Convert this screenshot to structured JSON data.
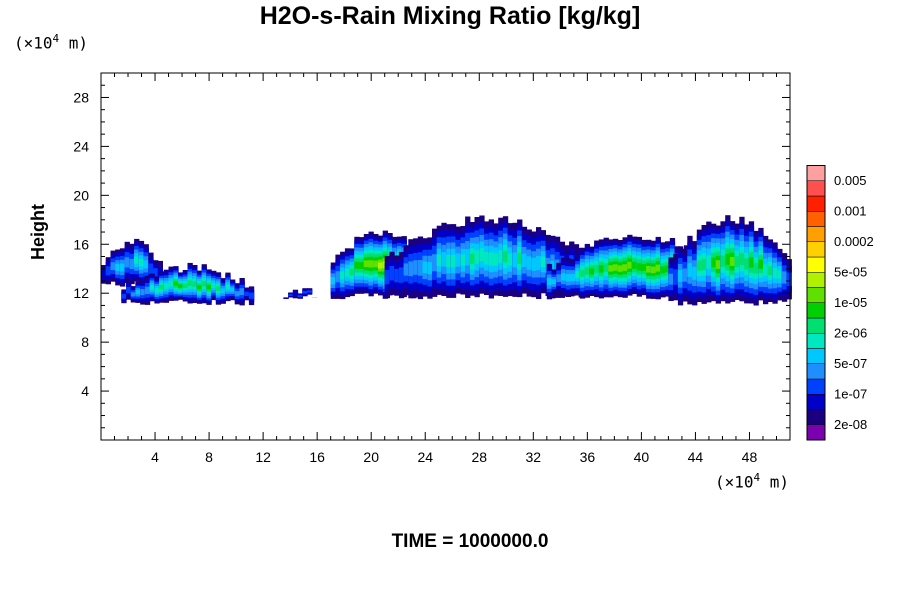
{
  "title": "H2O-s-Rain Mixing Ratio [kg/kg]",
  "y_unit_label": {
    "prefix": "(×10",
    "exp": "4",
    "suffix": " m)"
  },
  "x_unit_label": {
    "prefix": "(×10",
    "exp": "4",
    "suffix": " m)"
  },
  "time_label": "TIME = 1000000.0",
  "chart_data": {
    "type": "heatmap",
    "title": "H2O-s-Rain Mixing Ratio [kg/kg]",
    "ylabel": "Height",
    "x_ticks": [
      4,
      8,
      12,
      16,
      20,
      24,
      28,
      32,
      36,
      40,
      44,
      48
    ],
    "y_ticks": [
      4,
      8,
      12,
      16,
      20,
      24,
      28
    ],
    "xlim": [
      0,
      51
    ],
    "ylim": [
      0,
      30
    ],
    "grid": false,
    "colorbar": {
      "placement": "right",
      "colors": [
        "#7a00b0",
        "#1a0080",
        "#0000c8",
        "#0040ff",
        "#1f8fff",
        "#00c8ff",
        "#00e8c0",
        "#00e070",
        "#00d000",
        "#60e000",
        "#b0f000",
        "#ffff00",
        "#ffd000",
        "#ffa000",
        "#ff6000",
        "#ff2000",
        "#ff5050",
        "#ffa0a0"
      ],
      "labels": [
        "2e-08",
        "1e-07",
        "5e-07",
        "2e-06",
        "1e-05",
        "5e-05",
        "0.0002",
        "0.001",
        "0.005"
      ]
    },
    "regions": [
      {
        "x0": 0,
        "x1": 4.5,
        "ymin": 12.5,
        "ymax": 16.5,
        "peak": 4
      },
      {
        "x0": 1.5,
        "x1": 11,
        "ymin": 11,
        "ymax": 14.5,
        "peak": 6
      },
      {
        "x0": 13.5,
        "x1": 16,
        "ymin": 11.5,
        "ymax": 12.5,
        "peak": 2
      },
      {
        "x0": 17,
        "x1": 24,
        "ymin": 11.5,
        "ymax": 17.5,
        "peak": 8
      },
      {
        "x0": 21,
        "x1": 36,
        "ymin": 11.5,
        "ymax": 18.5,
        "peak": 5
      },
      {
        "x0": 33,
        "x1": 46,
        "ymin": 11.5,
        "ymax": 17,
        "peak": 8
      },
      {
        "x0": 42,
        "x1": 51,
        "ymin": 11,
        "ymax": 18.5,
        "peak": 7
      }
    ]
  }
}
